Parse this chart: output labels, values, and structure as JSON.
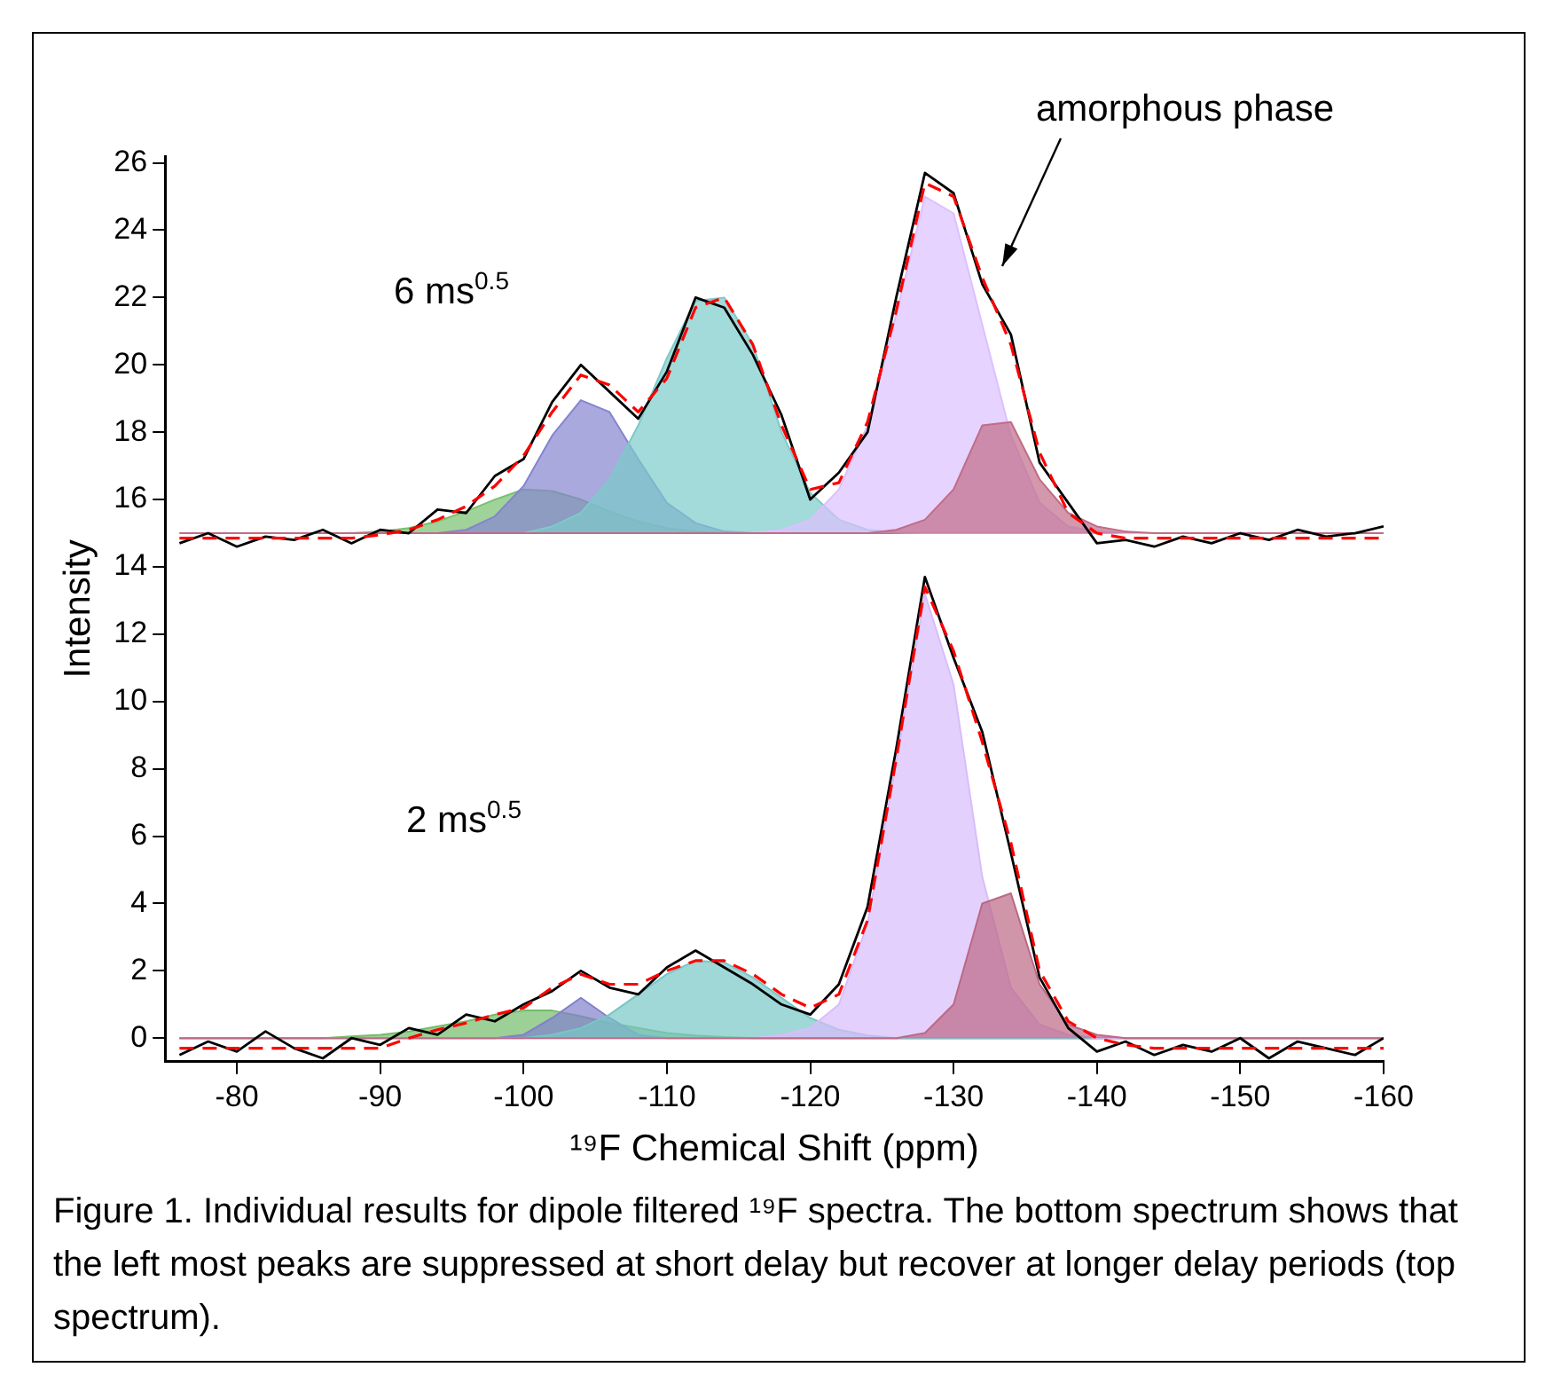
{
  "chart_data": {
    "type": "area",
    "xlabel": "¹⁹F Chemical Shift (ppm)",
    "ylabel": "Intensity",
    "x": [
      -76,
      -78,
      -80,
      -82,
      -84,
      -86,
      -88,
      -90,
      -92,
      -94,
      -96,
      -98,
      -100,
      -102,
      -104,
      -106,
      -108,
      -110,
      -112,
      -114,
      -116,
      -118,
      -120,
      -122,
      -124,
      -126,
      -128,
      -130,
      -132,
      -134,
      -136,
      -138,
      -140,
      -142,
      -144,
      -146,
      -148,
      -150,
      -152,
      -154,
      -156,
      -158,
      -160
    ],
    "xlim": [
      -75,
      -160
    ],
    "xticks": [
      -80,
      -90,
      -100,
      -110,
      -120,
      -130,
      -140,
      -150,
      -160
    ],
    "ylim": [
      -0.7,
      26.2
    ],
    "yticks": [
      0,
      2,
      4,
      6,
      8,
      10,
      12,
      14,
      16,
      18,
      20,
      22,
      24,
      26
    ],
    "grid": false,
    "legend": false,
    "marker": "none",
    "series": [
      {
        "color": "#78c06e",
        "values": [
          15,
          15,
          15,
          15,
          15,
          15,
          15,
          15.05,
          15.15,
          15.35,
          15.65,
          16.0,
          16.3,
          16.25,
          16.0,
          15.65,
          15.35,
          15.15,
          15.05,
          15,
          15,
          15,
          15,
          15,
          15,
          15,
          15,
          15,
          15,
          15,
          15,
          15,
          15,
          15,
          15,
          15,
          15,
          15,
          15,
          15,
          15,
          15,
          15
        ]
      },
      {
        "color": "#8484d0",
        "values": [
          15,
          15,
          15,
          15,
          15,
          15,
          15,
          15,
          15,
          15,
          15.1,
          15.5,
          16.4,
          17.9,
          18.95,
          18.6,
          17.2,
          15.9,
          15.3,
          15.05,
          15,
          15,
          15,
          15,
          15,
          15,
          15,
          15,
          15,
          15,
          15,
          15,
          15,
          15,
          15,
          15,
          15,
          15,
          15,
          15,
          15,
          15,
          15
        ]
      },
      {
        "color": "#7ccaca",
        "values": [
          15,
          15,
          15,
          15,
          15,
          15,
          15,
          15,
          15,
          15,
          15,
          15,
          15,
          15.2,
          15.6,
          16.6,
          18.2,
          20.2,
          21.9,
          22.0,
          20.6,
          18.0,
          16.2,
          15.4,
          15.1,
          15.02,
          15,
          15,
          15,
          15,
          15,
          15,
          15,
          15,
          15,
          15,
          15,
          15,
          15,
          15,
          15,
          15,
          15
        ]
      },
      {
        "color": "#dcc0ff",
        "values": [
          15,
          15,
          15,
          15,
          15,
          15,
          15,
          15,
          15,
          15,
          15,
          15,
          15,
          15,
          15,
          15,
          15,
          15,
          15,
          15,
          15,
          15.1,
          15.4,
          16.3,
          18.2,
          21.5,
          25.0,
          24.5,
          21.2,
          17.9,
          15.9,
          15.2,
          15.05,
          15,
          15,
          15,
          15,
          15,
          15,
          15,
          15,
          15,
          15
        ]
      },
      {
        "color": "#c06c88",
        "values": [
          15,
          15,
          15,
          15,
          15,
          15,
          15,
          15,
          15,
          15,
          15,
          15,
          15,
          15,
          15,
          15,
          15,
          15,
          15,
          15,
          15,
          15,
          15,
          15,
          15,
          15.1,
          15.4,
          16.3,
          18.2,
          18.3,
          16.6,
          15.6,
          15.2,
          15.05,
          15,
          15,
          15,
          15,
          15,
          15,
          15,
          15,
          15
        ]
      },
      {
        "color": "#74bc6a",
        "values": [
          0,
          0,
          0,
          0,
          0,
          0,
          0.05,
          0.1,
          0.2,
          0.35,
          0.5,
          0.7,
          0.82,
          0.82,
          0.65,
          0.45,
          0.3,
          0.15,
          0.08,
          0.03,
          0,
          0,
          0,
          0,
          0,
          0,
          0,
          0,
          0,
          0,
          0,
          0,
          0,
          0,
          0,
          0,
          0,
          0,
          0,
          0,
          0,
          0,
          0
        ]
      },
      {
        "color": "#8080cc",
        "values": [
          0,
          0,
          0,
          0,
          0,
          0,
          0,
          0,
          0,
          0,
          0,
          0,
          0.1,
          0.6,
          1.2,
          0.6,
          0.1,
          0,
          0,
          0,
          0,
          0,
          0,
          0,
          0,
          0,
          0,
          0,
          0,
          0,
          0,
          0,
          0,
          0,
          0,
          0,
          0,
          0,
          0,
          0,
          0,
          0,
          0
        ]
      },
      {
        "color": "#78c6c6",
        "values": [
          0,
          0,
          0,
          0,
          0,
          0,
          0,
          0,
          0,
          0,
          0,
          0,
          0,
          0.1,
          0.3,
          0.7,
          1.3,
          1.9,
          2.3,
          2.25,
          1.8,
          1.2,
          0.6,
          0.25,
          0.08,
          0,
          0,
          0,
          0,
          0,
          0,
          0,
          0,
          0,
          0,
          0,
          0,
          0,
          0,
          0,
          0,
          0,
          0
        ]
      },
      {
        "color": "#d8bcfc",
        "values": [
          0,
          0,
          0,
          0,
          0,
          0,
          0,
          0,
          0,
          0,
          0,
          0,
          0,
          0,
          0,
          0,
          0,
          0,
          0,
          0,
          0,
          0.1,
          0.3,
          1.0,
          3.4,
          8.2,
          13.2,
          10.5,
          4.8,
          1.5,
          0.4,
          0.1,
          0,
          0,
          0,
          0,
          0,
          0,
          0,
          0,
          0,
          0,
          0
        ]
      },
      {
        "color": "#bc6884",
        "values": [
          0,
          0,
          0,
          0,
          0,
          0,
          0,
          0,
          0,
          0,
          0,
          0,
          0,
          0,
          0,
          0,
          0,
          0,
          0,
          0,
          0,
          0,
          0,
          0,
          0,
          0,
          0.15,
          1.0,
          4.0,
          4.3,
          1.6,
          0.4,
          0.1,
          0,
          0,
          0,
          0,
          0,
          0,
          0,
          0,
          0,
          0
        ]
      },
      {
        "type": "line",
        "color": "#000000",
        "line_style": "solid",
        "values": [
          14.7,
          15.0,
          14.6,
          14.9,
          14.8,
          15.1,
          14.7,
          15.1,
          15.0,
          15.7,
          15.6,
          16.7,
          17.2,
          18.9,
          20.0,
          19.2,
          18.4,
          19.8,
          22.0,
          21.7,
          20.3,
          18.5,
          16.0,
          16.8,
          18.0,
          22.0,
          25.7,
          25.1,
          22.4,
          20.9,
          17.1,
          15.9,
          14.7,
          14.8,
          14.6,
          14.9,
          14.7,
          15.0,
          14.8,
          15.1,
          14.9,
          15.0,
          15.2
        ]
      },
      {
        "type": "line",
        "color": "#ff0000",
        "line_style": "dashed",
        "values": [
          14.85,
          14.85,
          14.85,
          14.85,
          14.85,
          14.85,
          14.85,
          14.95,
          15.1,
          15.4,
          15.8,
          16.4,
          17.3,
          18.6,
          19.7,
          19.4,
          18.6,
          19.6,
          21.7,
          22.0,
          20.6,
          18.2,
          16.3,
          16.5,
          18.3,
          21.6,
          25.4,
          25.0,
          22.6,
          20.6,
          17.4,
          15.6,
          15.0,
          14.85,
          14.85,
          14.85,
          14.85,
          14.85,
          14.85,
          14.85,
          14.85,
          14.85,
          14.85
        ]
      },
      {
        "type": "line",
        "color": "#000000",
        "line_style": "solid",
        "values": [
          -0.5,
          -0.1,
          -0.4,
          0.2,
          -0.3,
          -0.6,
          0.0,
          -0.2,
          0.3,
          0.1,
          0.7,
          0.5,
          1.0,
          1.4,
          2.0,
          1.5,
          1.3,
          2.1,
          2.6,
          2.1,
          1.6,
          1.0,
          0.7,
          1.6,
          3.9,
          8.6,
          13.7,
          11.3,
          9.1,
          5.5,
          1.8,
          0.3,
          -0.4,
          -0.1,
          -0.5,
          -0.2,
          -0.4,
          0.0,
          -0.6,
          -0.1,
          -0.3,
          -0.5,
          0.0
        ]
      },
      {
        "type": "line",
        "color": "#ff0000",
        "line_style": "dashed",
        "values": [
          -0.3,
          -0.3,
          -0.3,
          -0.3,
          -0.3,
          -0.3,
          -0.3,
          -0.3,
          0.0,
          0.25,
          0.45,
          0.7,
          0.9,
          1.5,
          1.9,
          1.6,
          1.6,
          2.0,
          2.3,
          2.3,
          1.9,
          1.3,
          0.9,
          1.3,
          3.5,
          8.3,
          13.4,
          11.5,
          8.8,
          5.8,
          2.0,
          0.5,
          0.0,
          -0.2,
          -0.3,
          -0.3,
          -0.3,
          -0.3,
          -0.3,
          -0.3,
          -0.3,
          -0.3,
          -0.3
        ]
      }
    ],
    "annotations": [
      "6 ms$^{0.5}$",
      "2 ms$^{0.5}$",
      "amorphous phase",
      "Figure 1. Individual results for dipole filtered ¹⁹F spectra. The bottom spectrum shows that the left most peaks are suppressed at short delay but recover at longer delay periods (top spectrum)."
    ]
  }
}
